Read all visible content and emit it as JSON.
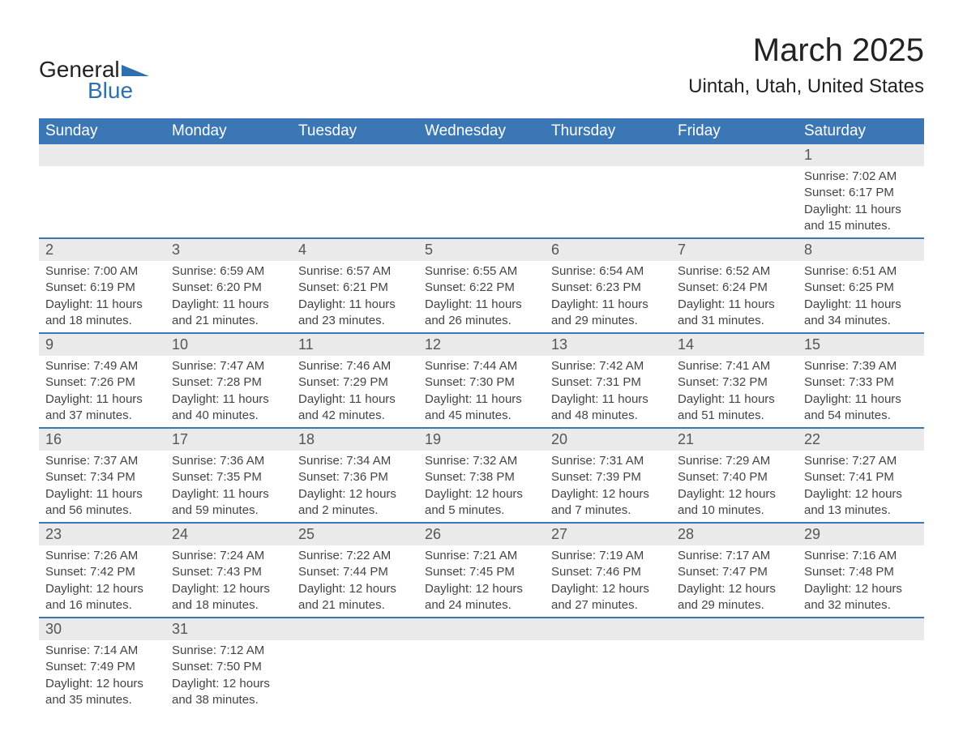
{
  "logo": {
    "text_general": "General",
    "text_blue": "Blue",
    "icon_color": "#2f6fb0"
  },
  "title": "March 2025",
  "location": "Uintah, Utah, United States",
  "colors": {
    "header_bg": "#3b77b5",
    "header_text": "#ffffff",
    "daynum_bg": "#eaeaea",
    "border_color": "#3b77b5",
    "text_color": "#333333",
    "background": "#ffffff"
  },
  "typography": {
    "title_fontsize": 40,
    "location_fontsize": 24,
    "weekday_fontsize": 19,
    "daynum_fontsize": 18,
    "daydata_fontsize": 15,
    "font_family": "Arial"
  },
  "weekdays": [
    "Sunday",
    "Monday",
    "Tuesday",
    "Wednesday",
    "Thursday",
    "Friday",
    "Saturday"
  ],
  "weeks": [
    [
      null,
      null,
      null,
      null,
      null,
      null,
      {
        "day": "1",
        "sunrise": "Sunrise: 7:02 AM",
        "sunset": "Sunset: 6:17 PM",
        "daylight": "Daylight: 11 hours and 15 minutes."
      }
    ],
    [
      {
        "day": "2",
        "sunrise": "Sunrise: 7:00 AM",
        "sunset": "Sunset: 6:19 PM",
        "daylight": "Daylight: 11 hours and 18 minutes."
      },
      {
        "day": "3",
        "sunrise": "Sunrise: 6:59 AM",
        "sunset": "Sunset: 6:20 PM",
        "daylight": "Daylight: 11 hours and 21 minutes."
      },
      {
        "day": "4",
        "sunrise": "Sunrise: 6:57 AM",
        "sunset": "Sunset: 6:21 PM",
        "daylight": "Daylight: 11 hours and 23 minutes."
      },
      {
        "day": "5",
        "sunrise": "Sunrise: 6:55 AM",
        "sunset": "Sunset: 6:22 PM",
        "daylight": "Daylight: 11 hours and 26 minutes."
      },
      {
        "day": "6",
        "sunrise": "Sunrise: 6:54 AM",
        "sunset": "Sunset: 6:23 PM",
        "daylight": "Daylight: 11 hours and 29 minutes."
      },
      {
        "day": "7",
        "sunrise": "Sunrise: 6:52 AM",
        "sunset": "Sunset: 6:24 PM",
        "daylight": "Daylight: 11 hours and 31 minutes."
      },
      {
        "day": "8",
        "sunrise": "Sunrise: 6:51 AM",
        "sunset": "Sunset: 6:25 PM",
        "daylight": "Daylight: 11 hours and 34 minutes."
      }
    ],
    [
      {
        "day": "9",
        "sunrise": "Sunrise: 7:49 AM",
        "sunset": "Sunset: 7:26 PM",
        "daylight": "Daylight: 11 hours and 37 minutes."
      },
      {
        "day": "10",
        "sunrise": "Sunrise: 7:47 AM",
        "sunset": "Sunset: 7:28 PM",
        "daylight": "Daylight: 11 hours and 40 minutes."
      },
      {
        "day": "11",
        "sunrise": "Sunrise: 7:46 AM",
        "sunset": "Sunset: 7:29 PM",
        "daylight": "Daylight: 11 hours and 42 minutes."
      },
      {
        "day": "12",
        "sunrise": "Sunrise: 7:44 AM",
        "sunset": "Sunset: 7:30 PM",
        "daylight": "Daylight: 11 hours and 45 minutes."
      },
      {
        "day": "13",
        "sunrise": "Sunrise: 7:42 AM",
        "sunset": "Sunset: 7:31 PM",
        "daylight": "Daylight: 11 hours and 48 minutes."
      },
      {
        "day": "14",
        "sunrise": "Sunrise: 7:41 AM",
        "sunset": "Sunset: 7:32 PM",
        "daylight": "Daylight: 11 hours and 51 minutes."
      },
      {
        "day": "15",
        "sunrise": "Sunrise: 7:39 AM",
        "sunset": "Sunset: 7:33 PM",
        "daylight": "Daylight: 11 hours and 54 minutes."
      }
    ],
    [
      {
        "day": "16",
        "sunrise": "Sunrise: 7:37 AM",
        "sunset": "Sunset: 7:34 PM",
        "daylight": "Daylight: 11 hours and 56 minutes."
      },
      {
        "day": "17",
        "sunrise": "Sunrise: 7:36 AM",
        "sunset": "Sunset: 7:35 PM",
        "daylight": "Daylight: 11 hours and 59 minutes."
      },
      {
        "day": "18",
        "sunrise": "Sunrise: 7:34 AM",
        "sunset": "Sunset: 7:36 PM",
        "daylight": "Daylight: 12 hours and 2 minutes."
      },
      {
        "day": "19",
        "sunrise": "Sunrise: 7:32 AM",
        "sunset": "Sunset: 7:38 PM",
        "daylight": "Daylight: 12 hours and 5 minutes."
      },
      {
        "day": "20",
        "sunrise": "Sunrise: 7:31 AM",
        "sunset": "Sunset: 7:39 PM",
        "daylight": "Daylight: 12 hours and 7 minutes."
      },
      {
        "day": "21",
        "sunrise": "Sunrise: 7:29 AM",
        "sunset": "Sunset: 7:40 PM",
        "daylight": "Daylight: 12 hours and 10 minutes."
      },
      {
        "day": "22",
        "sunrise": "Sunrise: 7:27 AM",
        "sunset": "Sunset: 7:41 PM",
        "daylight": "Daylight: 12 hours and 13 minutes."
      }
    ],
    [
      {
        "day": "23",
        "sunrise": "Sunrise: 7:26 AM",
        "sunset": "Sunset: 7:42 PM",
        "daylight": "Daylight: 12 hours and 16 minutes."
      },
      {
        "day": "24",
        "sunrise": "Sunrise: 7:24 AM",
        "sunset": "Sunset: 7:43 PM",
        "daylight": "Daylight: 12 hours and 18 minutes."
      },
      {
        "day": "25",
        "sunrise": "Sunrise: 7:22 AM",
        "sunset": "Sunset: 7:44 PM",
        "daylight": "Daylight: 12 hours and 21 minutes."
      },
      {
        "day": "26",
        "sunrise": "Sunrise: 7:21 AM",
        "sunset": "Sunset: 7:45 PM",
        "daylight": "Daylight: 12 hours and 24 minutes."
      },
      {
        "day": "27",
        "sunrise": "Sunrise: 7:19 AM",
        "sunset": "Sunset: 7:46 PM",
        "daylight": "Daylight: 12 hours and 27 minutes."
      },
      {
        "day": "28",
        "sunrise": "Sunrise: 7:17 AM",
        "sunset": "Sunset: 7:47 PM",
        "daylight": "Daylight: 12 hours and 29 minutes."
      },
      {
        "day": "29",
        "sunrise": "Sunrise: 7:16 AM",
        "sunset": "Sunset: 7:48 PM",
        "daylight": "Daylight: 12 hours and 32 minutes."
      }
    ],
    [
      {
        "day": "30",
        "sunrise": "Sunrise: 7:14 AM",
        "sunset": "Sunset: 7:49 PM",
        "daylight": "Daylight: 12 hours and 35 minutes."
      },
      {
        "day": "31",
        "sunrise": "Sunrise: 7:12 AM",
        "sunset": "Sunset: 7:50 PM",
        "daylight": "Daylight: 12 hours and 38 minutes."
      },
      null,
      null,
      null,
      null,
      null
    ]
  ]
}
